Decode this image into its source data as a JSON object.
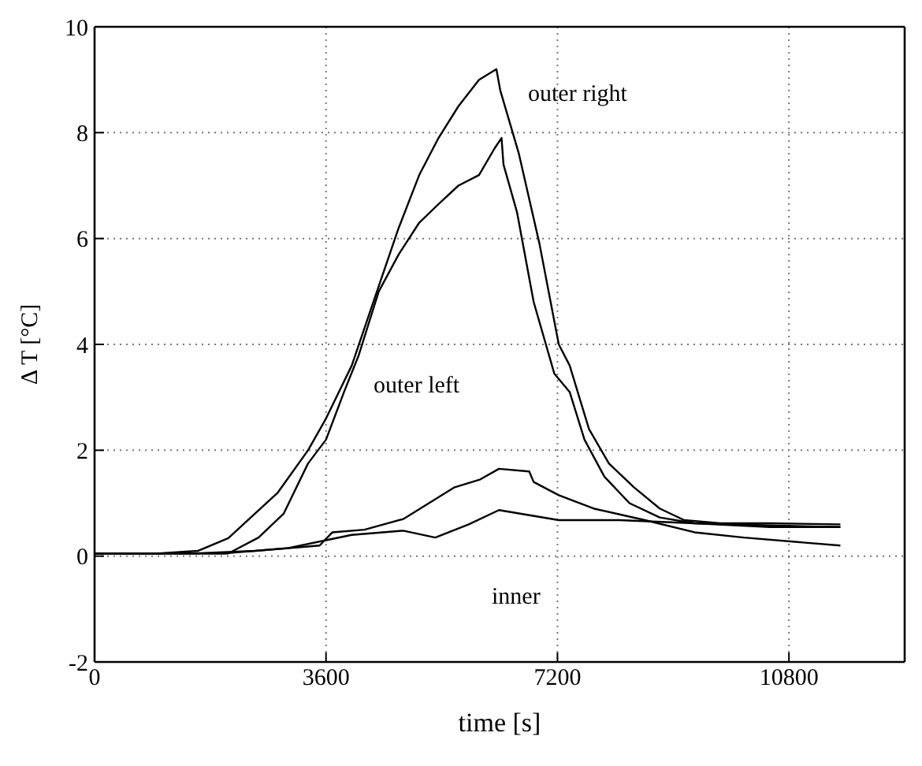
{
  "chart_data": {
    "type": "line",
    "xlabel": "time [s]",
    "ylabel": "Δ T [°C]",
    "xlim": [
      0,
      12600
    ],
    "xticks": [
      0,
      3600,
      7200,
      10800
    ],
    "ylim": [
      -2,
      10
    ],
    "yticks": [
      -2,
      0,
      2,
      4,
      6,
      8,
      10
    ],
    "grid": true,
    "series": [
      {
        "color": "#000000",
        "x": [
          0,
          1000,
          1610,
          2080,
          2850,
          3320,
          3600,
          4000,
          4420,
          4730,
          5050,
          5350,
          5660,
          5980,
          6250,
          6310,
          6600,
          6920,
          7220,
          7390,
          7690,
          8000,
          8390,
          8790,
          9170,
          9730,
          10500,
          11600
        ],
        "values": [
          0.05,
          0.05,
          0.1,
          0.34,
          1.2,
          2.0,
          2.6,
          3.6,
          5.1,
          6.2,
          7.2,
          7.9,
          8.5,
          9.0,
          9.2,
          8.8,
          7.6,
          5.9,
          4.0,
          3.6,
          2.4,
          1.75,
          1.3,
          0.9,
          0.68,
          0.62,
          0.62,
          0.6
        ]
      },
      {
        "color": "#000000",
        "x": [
          0,
          1000,
          2080,
          2550,
          2940,
          3320,
          3600,
          3880,
          4110,
          4420,
          4730,
          5050,
          5350,
          5660,
          5980,
          6220,
          6330,
          6360,
          6570,
          6830,
          7150,
          7390,
          7620,
          7930,
          8320,
          8790,
          9330,
          10500,
          11600
        ],
        "values": [
          0.05,
          0.05,
          0.05,
          0.35,
          0.8,
          1.75,
          2.2,
          3.1,
          3.8,
          5.0,
          5.7,
          6.3,
          6.65,
          7.0,
          7.2,
          7.7,
          7.9,
          7.4,
          6.5,
          4.8,
          3.45,
          3.1,
          2.2,
          1.5,
          1.0,
          0.73,
          0.62,
          0.58,
          0.55
        ]
      },
      {
        "color": "#000000",
        "x": [
          0,
          1500,
          2500,
          3500,
          3700,
          4200,
          4800,
          5200,
          5600,
          6000,
          6290,
          6760,
          6830,
          7220,
          7760,
          8560,
          9330,
          10100,
          11600
        ],
        "values": [
          0.05,
          0.05,
          0.1,
          0.2,
          0.45,
          0.5,
          0.7,
          1.0,
          1.3,
          1.45,
          1.65,
          1.6,
          1.4,
          1.15,
          0.9,
          0.68,
          0.45,
          0.35,
          0.2
        ]
      },
      {
        "color": "#000000",
        "x": [
          0,
          2000,
          3000,
          3600,
          4000,
          4800,
          5300,
          5820,
          6290,
          7220,
          8160,
          9330,
          10500,
          11600
        ],
        "values": [
          0.05,
          0.05,
          0.15,
          0.3,
          0.4,
          0.48,
          0.35,
          0.6,
          0.87,
          0.68,
          0.68,
          0.62,
          0.55,
          0.55
        ]
      }
    ],
    "annotations": [
      "outer right",
      "outer left",
      "inner"
    ]
  }
}
